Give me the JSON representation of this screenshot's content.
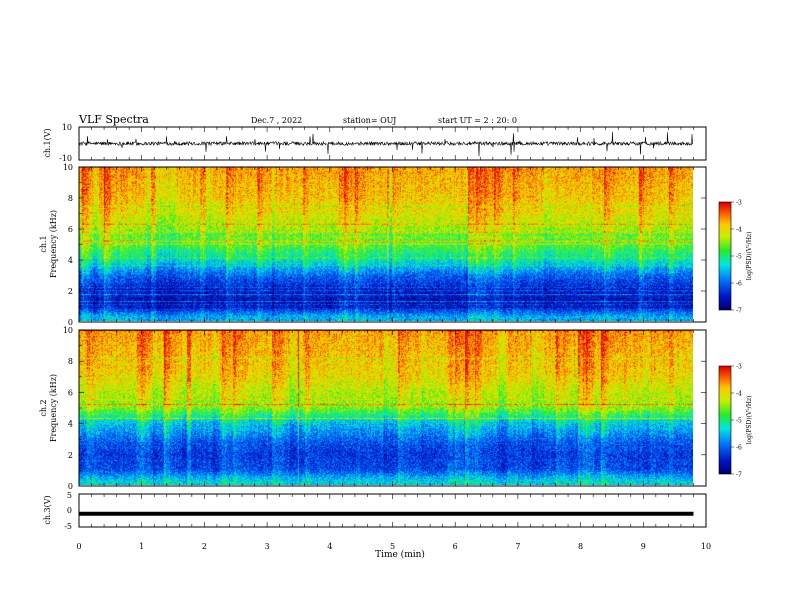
{
  "header": {
    "title": "VLF Spectra",
    "date": "Dec.7 , 2022",
    "station": "station= OUJ",
    "start": "start UT =  2 : 20: 0"
  },
  "chart_data": [
    {
      "type": "line",
      "panel": "ch1-waveform",
      "ylabel": "ch.1(V)",
      "ylim": [
        -10,
        10
      ],
      "yticks": [
        "10",
        "-10"
      ],
      "xlim": [
        0,
        10
      ],
      "trace_baseline_v": 0,
      "trace_end_min": 9.8,
      "color": "#000000"
    },
    {
      "type": "heatmap",
      "panel": "ch1-spectrogram",
      "ylabel_line1": "ch.1",
      "ylabel_line2": "Frequency (kHz)",
      "ylim": [
        0,
        10
      ],
      "yticks": [
        "0",
        "2",
        "4",
        "6",
        "8",
        "10"
      ],
      "xlim": [
        0,
        9.8
      ],
      "colorbar": {
        "label": "log(PSD)(V²/Hz)",
        "min": -7,
        "max": -3,
        "ticks": [
          "-3",
          "-4",
          "-5",
          "-6",
          "-7"
        ]
      },
      "colormap": "rainbow",
      "mean_log_psd_by_frequency": [
        {
          "f": 0.2,
          "v": -5.6
        },
        {
          "f": 1.0,
          "v": -6.6
        },
        {
          "f": 2.0,
          "v": -6.5
        },
        {
          "f": 3.0,
          "v": -6.0
        },
        {
          "f": 4.0,
          "v": -5.2
        },
        {
          "f": 5.0,
          "v": -4.7
        },
        {
          "f": 6.0,
          "v": -4.4
        },
        {
          "f": 7.0,
          "v": -4.1
        },
        {
          "f": 8.0,
          "v": -3.9
        },
        {
          "f": 9.0,
          "v": -3.8
        },
        {
          "f": 10.0,
          "v": -3.7
        }
      ]
    },
    {
      "type": "heatmap",
      "panel": "ch2-spectrogram",
      "ylabel_line1": "ch.2",
      "ylabel_line2": "Frequency (kHz)",
      "ylim": [
        0,
        10
      ],
      "yticks": [
        "0",
        "2",
        "4",
        "6",
        "8",
        "10"
      ],
      "xlim": [
        0,
        9.8
      ],
      "colorbar": {
        "label": "log(PSD)(V²/Hz)",
        "min": -7,
        "max": -3,
        "ticks": [
          "-3",
          "-4",
          "-5",
          "-6",
          "-7"
        ]
      },
      "colormap": "rainbow",
      "mean_log_psd_by_frequency": [
        {
          "f": 0.2,
          "v": -5.4
        },
        {
          "f": 1.0,
          "v": -6.2
        },
        {
          "f": 2.0,
          "v": -6.3
        },
        {
          "f": 3.0,
          "v": -6.0
        },
        {
          "f": 4.0,
          "v": -5.5
        },
        {
          "f": 5.0,
          "v": -4.5
        },
        {
          "f": 6.0,
          "v": -4.3
        },
        {
          "f": 7.0,
          "v": -4.0
        },
        {
          "f": 8.0,
          "v": -3.9
        },
        {
          "f": 9.0,
          "v": -3.8
        },
        {
          "f": 10.0,
          "v": -3.7
        }
      ]
    },
    {
      "type": "line",
      "panel": "ch3-waveform",
      "ylabel": "ch.3(V)",
      "ylim": [
        -5,
        5
      ],
      "yticks": [
        "5",
        "0",
        "-5"
      ],
      "xlim": [
        0,
        10
      ],
      "trace_constant_v": -1.0,
      "trace_end_min": 9.8,
      "xlabel": "Time (min)",
      "xticks": [
        "0",
        "1",
        "2",
        "3",
        "4",
        "5",
        "6",
        "7",
        "8",
        "9",
        "10"
      ],
      "color": "#000000"
    }
  ]
}
